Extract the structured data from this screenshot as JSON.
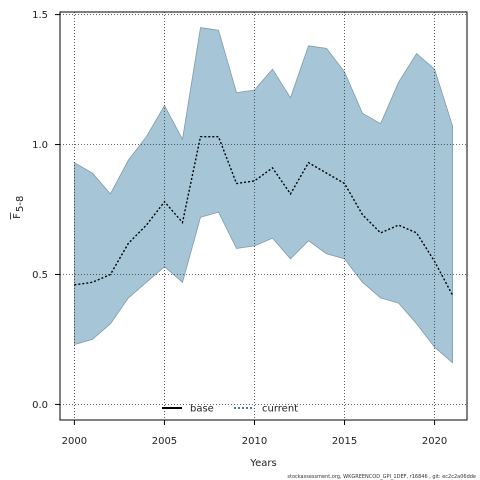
{
  "chart_data": {
    "type": "area",
    "xlabel": "Years",
    "ylabel_main": "F",
    "ylabel_sub": "5-8",
    "xlim": [
      1999.2,
      2021.8
    ],
    "ylim": [
      -0.06,
      1.51
    ],
    "x_ticks": [
      2000,
      2005,
      2010,
      2015,
      2020
    ],
    "y_ticks": [
      0.0,
      0.5,
      1.0,
      1.5
    ],
    "y_tick_labels": [
      "0.0",
      "0.5",
      "1.0",
      "1.5"
    ],
    "grid": true,
    "legend_position": "bottom-center",
    "colors": {
      "band": "#a6c6d8",
      "band_edge": "#7f9aab",
      "current": "#000000"
    },
    "x": [
      2000,
      2001,
      2002,
      2003,
      2004,
      2005,
      2006,
      2007,
      2008,
      2009,
      2010,
      2011,
      2012,
      2013,
      2014,
      2015,
      2016,
      2017,
      2018,
      2019,
      2020,
      2021
    ],
    "band_upper": [
      0.93,
      0.89,
      0.81,
      0.94,
      1.03,
      1.15,
      1.02,
      1.45,
      1.44,
      1.2,
      1.21,
      1.29,
      1.18,
      1.38,
      1.37,
      1.28,
      1.12,
      1.08,
      1.24,
      1.35,
      1.29,
      1.07
    ],
    "band_lower": [
      0.23,
      0.25,
      0.31,
      0.41,
      0.47,
      0.53,
      0.47,
      0.72,
      0.74,
      0.6,
      0.61,
      0.64,
      0.56,
      0.63,
      0.58,
      0.56,
      0.47,
      0.41,
      0.39,
      0.31,
      0.22,
      0.16
    ],
    "series": [
      {
        "name": "current",
        "style": "dotted",
        "values": [
          0.46,
          0.47,
          0.5,
          0.62,
          0.69,
          0.78,
          0.7,
          1.03,
          1.03,
          0.85,
          0.86,
          0.91,
          0.81,
          0.93,
          0.89,
          0.85,
          0.73,
          0.66,
          0.69,
          0.66,
          0.55,
          0.42
        ]
      }
    ],
    "legend": [
      {
        "name": "base",
        "style": "solid"
      },
      {
        "name": "current",
        "style": "dotted"
      }
    ]
  },
  "footer": "stockassessment.org, WKGREENCOD_GPI_1DEF, r16846 , git: ec2c2a06dde"
}
